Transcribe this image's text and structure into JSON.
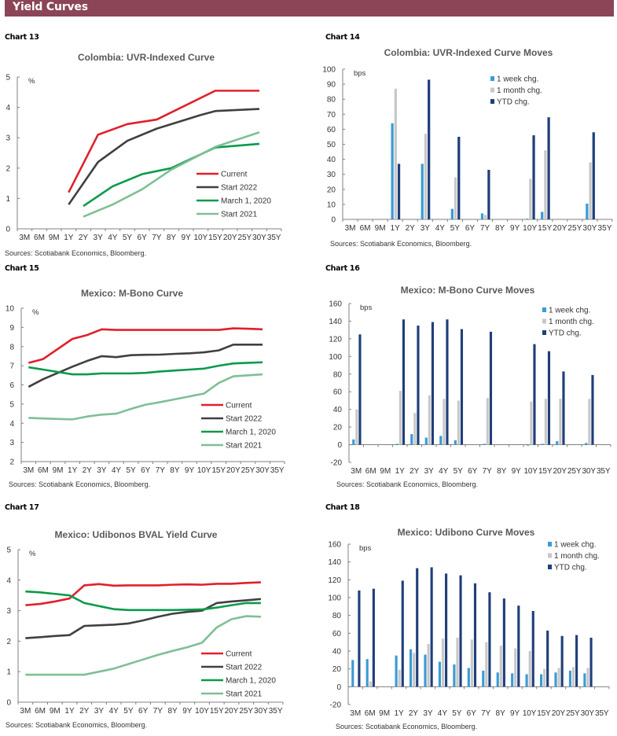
{
  "header": {
    "title": "Yield Curves"
  },
  "sources": "Sources: Scotiabank Economics, Bloomberg.",
  "colors": {
    "header_bg": "#8b4557",
    "current": "#e0202b",
    "start_2022": "#404040",
    "march_2020": "#0a9a4a",
    "start_2021": "#7fbf95",
    "week": "#3a9bd5",
    "month": "#c8c8c8",
    "ytd": "#1f3f7a"
  },
  "chart_data": [
    {
      "label": "Chart 13",
      "type": "line",
      "title": "Colombia: UVR-Indexed Curve",
      "ylabel": "%",
      "ylim": [
        0,
        5
      ],
      "yticks": [
        0,
        1,
        2,
        3,
        4,
        5
      ],
      "categories": [
        "3M",
        "6M",
        "9M",
        "1Y",
        "2Y",
        "3Y",
        "4Y",
        "5Y",
        "6Y",
        "7Y",
        "8Y",
        "9Y",
        "10Y",
        "15Y",
        "20Y",
        "25Y",
        "30Y",
        "35Y"
      ],
      "legend_position": "bottom-right",
      "series": [
        {
          "name": "Current",
          "color_key": "current",
          "values": [
            null,
            null,
            null,
            1.2,
            null,
            3.1,
            null,
            3.45,
            null,
            3.6,
            null,
            null,
            null,
            4.55,
            null,
            null,
            4.55,
            null
          ]
        },
        {
          "name": "Start 2022",
          "color_key": "start_2022",
          "values": [
            null,
            null,
            null,
            0.8,
            null,
            2.2,
            null,
            2.9,
            null,
            3.3,
            null,
            null,
            3.75,
            3.88,
            null,
            null,
            3.95,
            null
          ]
        },
        {
          "name": "March 1, 2020",
          "color_key": "march_2020",
          "values": [
            null,
            null,
            null,
            null,
            0.75,
            null,
            1.4,
            null,
            1.8,
            null,
            2.0,
            null,
            null,
            2.68,
            null,
            null,
            2.8,
            null
          ]
        },
        {
          "name": "Start 2021",
          "color_key": "start_2021",
          "values": [
            null,
            null,
            null,
            null,
            0.4,
            null,
            0.8,
            null,
            1.3,
            null,
            1.95,
            null,
            null,
            2.7,
            null,
            null,
            3.18,
            null
          ]
        }
      ]
    },
    {
      "label": "Chart 14",
      "type": "bar",
      "title": "Colombia: UVR-Indexed Curve Moves",
      "ylabel": "bps",
      "ylim": [
        0,
        100
      ],
      "yticks": [
        0,
        10,
        20,
        30,
        40,
        50,
        60,
        70,
        80,
        90,
        100
      ],
      "categories": [
        "3M",
        "6M",
        "9M",
        "1Y",
        "2Y",
        "3Y",
        "4Y",
        "5Y",
        "6Y",
        "7Y",
        "8Y",
        "9Y",
        "10Y",
        "15Y",
        "20Y",
        "25Y",
        "30Y",
        "35Y"
      ],
      "legend_position": "top-right",
      "series": [
        {
          "name": "1 week chg.",
          "color_key": "week",
          "values": [
            null,
            null,
            null,
            64,
            null,
            37,
            null,
            7,
            null,
            4,
            null,
            null,
            0.5,
            5,
            null,
            null,
            10.5,
            null
          ]
        },
        {
          "name": "1 month chg.",
          "color_key": "month",
          "values": [
            null,
            null,
            null,
            87,
            null,
            57,
            null,
            28,
            null,
            3,
            null,
            null,
            27,
            46,
            null,
            null,
            38,
            null
          ]
        },
        {
          "name": "YTD chg.",
          "color_key": "ytd",
          "values": [
            null,
            null,
            null,
            37,
            null,
            93,
            null,
            55,
            null,
            33,
            null,
            null,
            56,
            68,
            null,
            null,
            58,
            null
          ]
        }
      ]
    },
    {
      "label": "Chart 15",
      "type": "line",
      "title": "Mexico: M-Bono Curve",
      "ylabel": "%",
      "ylim": [
        2,
        10
      ],
      "yticks": [
        2,
        3,
        4,
        5,
        6,
        7,
        8,
        9,
        10
      ],
      "categories": [
        "3M",
        "6M",
        "9M",
        "1Y",
        "2Y",
        "3Y",
        "4Y",
        "5Y",
        "6Y",
        "7Y",
        "8Y",
        "9Y",
        "10Y",
        "15Y",
        "20Y",
        "25Y",
        "30Y",
        "35Y"
      ],
      "legend_position": "bottom-right",
      "series": [
        {
          "name": "Current",
          "color_key": "current",
          "values": [
            7.15,
            7.35,
            null,
            8.4,
            8.6,
            8.9,
            8.87,
            8.87,
            8.87,
            8.87,
            8.87,
            8.87,
            8.87,
            8.87,
            8.95,
            8.93,
            8.9,
            null
          ]
        },
        {
          "name": "Start 2022",
          "color_key": "start_2022",
          "values": [
            5.9,
            6.3,
            null,
            6.95,
            7.25,
            7.5,
            7.45,
            7.55,
            7.57,
            7.58,
            7.62,
            7.65,
            7.7,
            7.8,
            8.1,
            8.1,
            8.1,
            null
          ]
        },
        {
          "name": "March 1, 2020",
          "color_key": "march_2020",
          "values": [
            6.92,
            6.8,
            null,
            6.55,
            6.55,
            6.6,
            6.6,
            6.6,
            6.63,
            6.7,
            6.75,
            6.8,
            6.85,
            7.0,
            7.12,
            7.15,
            7.18,
            null
          ]
        },
        {
          "name": "Start 2021",
          "color_key": "start_2021",
          "values": [
            4.28,
            4.25,
            null,
            4.2,
            4.35,
            4.45,
            4.5,
            4.75,
            4.97,
            5.1,
            5.25,
            5.4,
            5.55,
            6.1,
            6.45,
            6.5,
            6.55,
            null
          ]
        }
      ]
    },
    {
      "label": "Chart 16",
      "type": "bar",
      "title": "Mexico: M-Bono Curve Moves",
      "ylabel": "bps",
      "ylim": [
        -20,
        160
      ],
      "yticks": [
        -20,
        0,
        20,
        40,
        60,
        80,
        100,
        120,
        140,
        160
      ],
      "categories": [
        "3M",
        "6M",
        "9M",
        "1Y",
        "2Y",
        "3Y",
        "4Y",
        "5Y",
        "6Y",
        "7Y",
        "8Y",
        "9Y",
        "10Y",
        "15Y",
        "20Y",
        "25Y",
        "30Y",
        "35Y"
      ],
      "legend_position": "top-right",
      "series": [
        {
          "name": "1 week chg.",
          "color_key": "week",
          "values": [
            6,
            null,
            null,
            1,
            12,
            8,
            10,
            5,
            null,
            1,
            null,
            null,
            -1,
            1,
            4,
            null,
            2,
            null
          ]
        },
        {
          "name": "1 month chg.",
          "color_key": "month",
          "values": [
            40,
            null,
            null,
            61,
            36,
            56,
            52,
            50,
            null,
            53,
            null,
            null,
            49,
            52,
            52,
            null,
            52,
            null
          ]
        },
        {
          "name": "YTD chg.",
          "color_key": "ytd",
          "values": [
            125,
            null,
            null,
            142,
            135,
            139,
            142,
            131,
            null,
            128,
            null,
            null,
            114,
            106,
            83,
            null,
            79,
            null
          ]
        }
      ]
    },
    {
      "label": "Chart 17",
      "type": "line",
      "title": "Mexico: Udibonos BVAL Yield Curve",
      "ylabel": "%",
      "ylim": [
        0,
        5
      ],
      "yticks": [
        0,
        1,
        2,
        3,
        4,
        5
      ],
      "categories": [
        "3M",
        "6M",
        "9M",
        "1Y",
        "2Y",
        "3Y",
        "4Y",
        "5Y",
        "6Y",
        "7Y",
        "8Y",
        "9Y",
        "10Y",
        "15Y",
        "20Y",
        "25Y",
        "30Y",
        "35Y"
      ],
      "legend_position": "bottom-right",
      "series": [
        {
          "name": "Current",
          "color_key": "current",
          "values": [
            3.18,
            3.22,
            3.3,
            3.4,
            3.83,
            3.87,
            3.82,
            3.83,
            3.83,
            3.83,
            3.85,
            3.86,
            3.85,
            3.88,
            3.88,
            3.91,
            3.93,
            null
          ]
        },
        {
          "name": "Start 2022",
          "color_key": "start_2022",
          "values": [
            2.1,
            2.13,
            2.17,
            2.2,
            2.5,
            2.52,
            2.54,
            2.58,
            2.68,
            2.8,
            2.9,
            2.96,
            3.0,
            3.25,
            3.3,
            3.34,
            3.38,
            null
          ]
        },
        {
          "name": "March 1, 2020",
          "color_key": "march_2020",
          "values": [
            3.63,
            3.6,
            3.55,
            3.5,
            3.25,
            3.15,
            3.05,
            3.02,
            3.02,
            3.02,
            3.02,
            3.03,
            3.04,
            3.1,
            3.18,
            3.25,
            3.25,
            null
          ]
        },
        {
          "name": "Start 2021",
          "color_key": "start_2021",
          "values": [
            0.9,
            0.9,
            0.9,
            0.9,
            0.9,
            1.0,
            1.1,
            1.25,
            1.4,
            1.55,
            1.68,
            1.8,
            1.95,
            2.45,
            2.72,
            2.82,
            2.8,
            null
          ]
        }
      ]
    },
    {
      "label": "Chart 18",
      "type": "bar",
      "title": "Mexico: Udibono Curve Moves",
      "ylabel": "bps",
      "ylim": [
        -20,
        160
      ],
      "yticks": [
        -20,
        0,
        20,
        40,
        60,
        80,
        100,
        120,
        140,
        160
      ],
      "categories": [
        "3M",
        "6M",
        "9M",
        "1Y",
        "2Y",
        "3Y",
        "4Y",
        "5Y",
        "6Y",
        "7Y",
        "8Y",
        "9Y",
        "10Y",
        "15Y",
        "20Y",
        "25Y",
        "30Y",
        "35Y"
      ],
      "legend_position": "top-right",
      "series": [
        {
          "name": "1 week chg.",
          "color_key": "week",
          "values": [
            30,
            31,
            null,
            35,
            42,
            36,
            28,
            25,
            21,
            18,
            16,
            15,
            14,
            14,
            16,
            18,
            15,
            null
          ]
        },
        {
          "name": "1 month chg.",
          "color_key": "month",
          "values": [
            0,
            6,
            null,
            19,
            38,
            48,
            54,
            55,
            53,
            50,
            46,
            43,
            40,
            20,
            21,
            22,
            21,
            null
          ]
        },
        {
          "name": "YTD chg.",
          "color_key": "ytd",
          "values": [
            108,
            110,
            null,
            119,
            133,
            134,
            127,
            125,
            116,
            106,
            99,
            91,
            85,
            63,
            57,
            58,
            55,
            null
          ]
        }
      ]
    }
  ]
}
